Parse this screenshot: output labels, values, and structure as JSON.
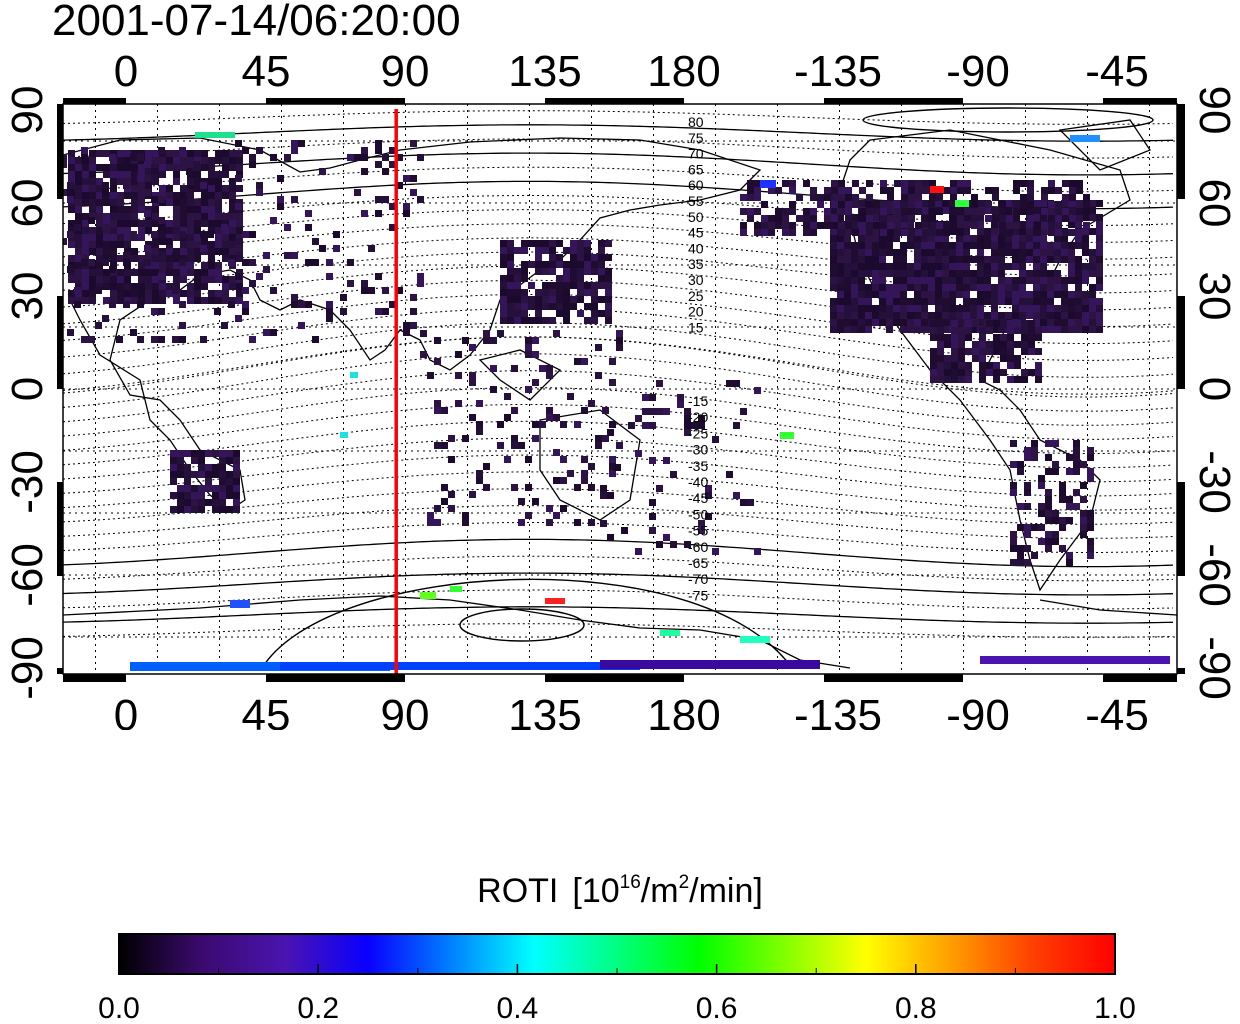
{
  "timestamp": "2001-07-14/06:20:00",
  "map": {
    "x_tick_labels": [
      "0",
      "45",
      "90",
      "135",
      "180",
      "-135",
      "-90",
      "-45"
    ],
    "y_tick_labels": [
      "90",
      "60",
      "30",
      "0",
      "-30",
      "-60",
      "-90"
    ],
    "magnetic_lat_labels_north": [
      "80",
      "75",
      "70",
      "65",
      "60",
      "55",
      "50",
      "45",
      "40",
      "35",
      "30",
      "25",
      "20",
      "15"
    ],
    "magnetic_lat_labels_south": [
      "-15",
      "-20",
      "-25",
      "-30",
      "-35",
      "-40",
      "-45",
      "-50",
      "-55",
      "-60",
      "-65",
      "-70",
      "-75"
    ],
    "line_color": "#ff0000",
    "line_longitude": 87
  },
  "colorbar": {
    "title_prefix": "ROTI",
    "title_base1": "[10",
    "title_exp1": "16",
    "title_mid": "/m",
    "title_exp2": "2",
    "title_end": "/min]",
    "tick_labels": [
      "0.0",
      "0.2",
      "0.4",
      "0.6",
      "0.8",
      "1.0"
    ],
    "range": [
      0.0,
      1.0
    ],
    "colors": [
      "#000000",
      "#3b0a6e",
      "#4a14b0",
      "#0a00ff",
      "#0080ff",
      "#00ffff",
      "#00ff80",
      "#00ff00",
      "#80ff00",
      "#ffff00",
      "#ffa000",
      "#ff4000",
      "#ff0000"
    ]
  }
}
